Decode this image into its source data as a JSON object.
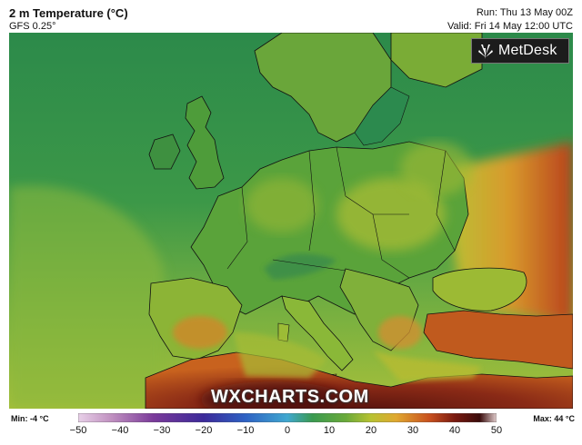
{
  "header": {
    "title": "2 m Temperature (°C)",
    "model": "GFS 0.25°",
    "run": "Run: Thu 13 May 00Z",
    "valid": "Valid: Fri 14 May 12:00 UTC"
  },
  "brand": {
    "name": "MetDesk",
    "icon": "metdesk-logo-icon"
  },
  "watermark": "WXCHARTS.COM",
  "legend": {
    "min_label": "Min: -4 °C",
    "max_label": "Max: 44 °C",
    "ticks": [
      "−50",
      "−40",
      "−30",
      "−20",
      "−10",
      "0",
      "10",
      "20",
      "30",
      "40",
      "50"
    ],
    "tick_values": [
      -50,
      -40,
      -30,
      -20,
      -10,
      0,
      10,
      20,
      30,
      40,
      50
    ],
    "colors": [
      "#e8d0e8",
      "#a05aa0",
      "#6a2a90",
      "#3a2a9a",
      "#3060c0",
      "#40a0d0",
      "#40a060",
      "#90b830",
      "#e0c030",
      "#d06020",
      "#902010",
      "#501010",
      "#dcc8c8"
    ]
  },
  "map_colors": {
    "sea_cool": "#2f8a4e",
    "sea_mild": "#5aa348",
    "land_green": "#4a9a3e",
    "land_yellow": "#b8c234",
    "warm_orange": "#d88a2a",
    "hot_red": "#b03a1a",
    "very_hot": "#6e1a12"
  }
}
